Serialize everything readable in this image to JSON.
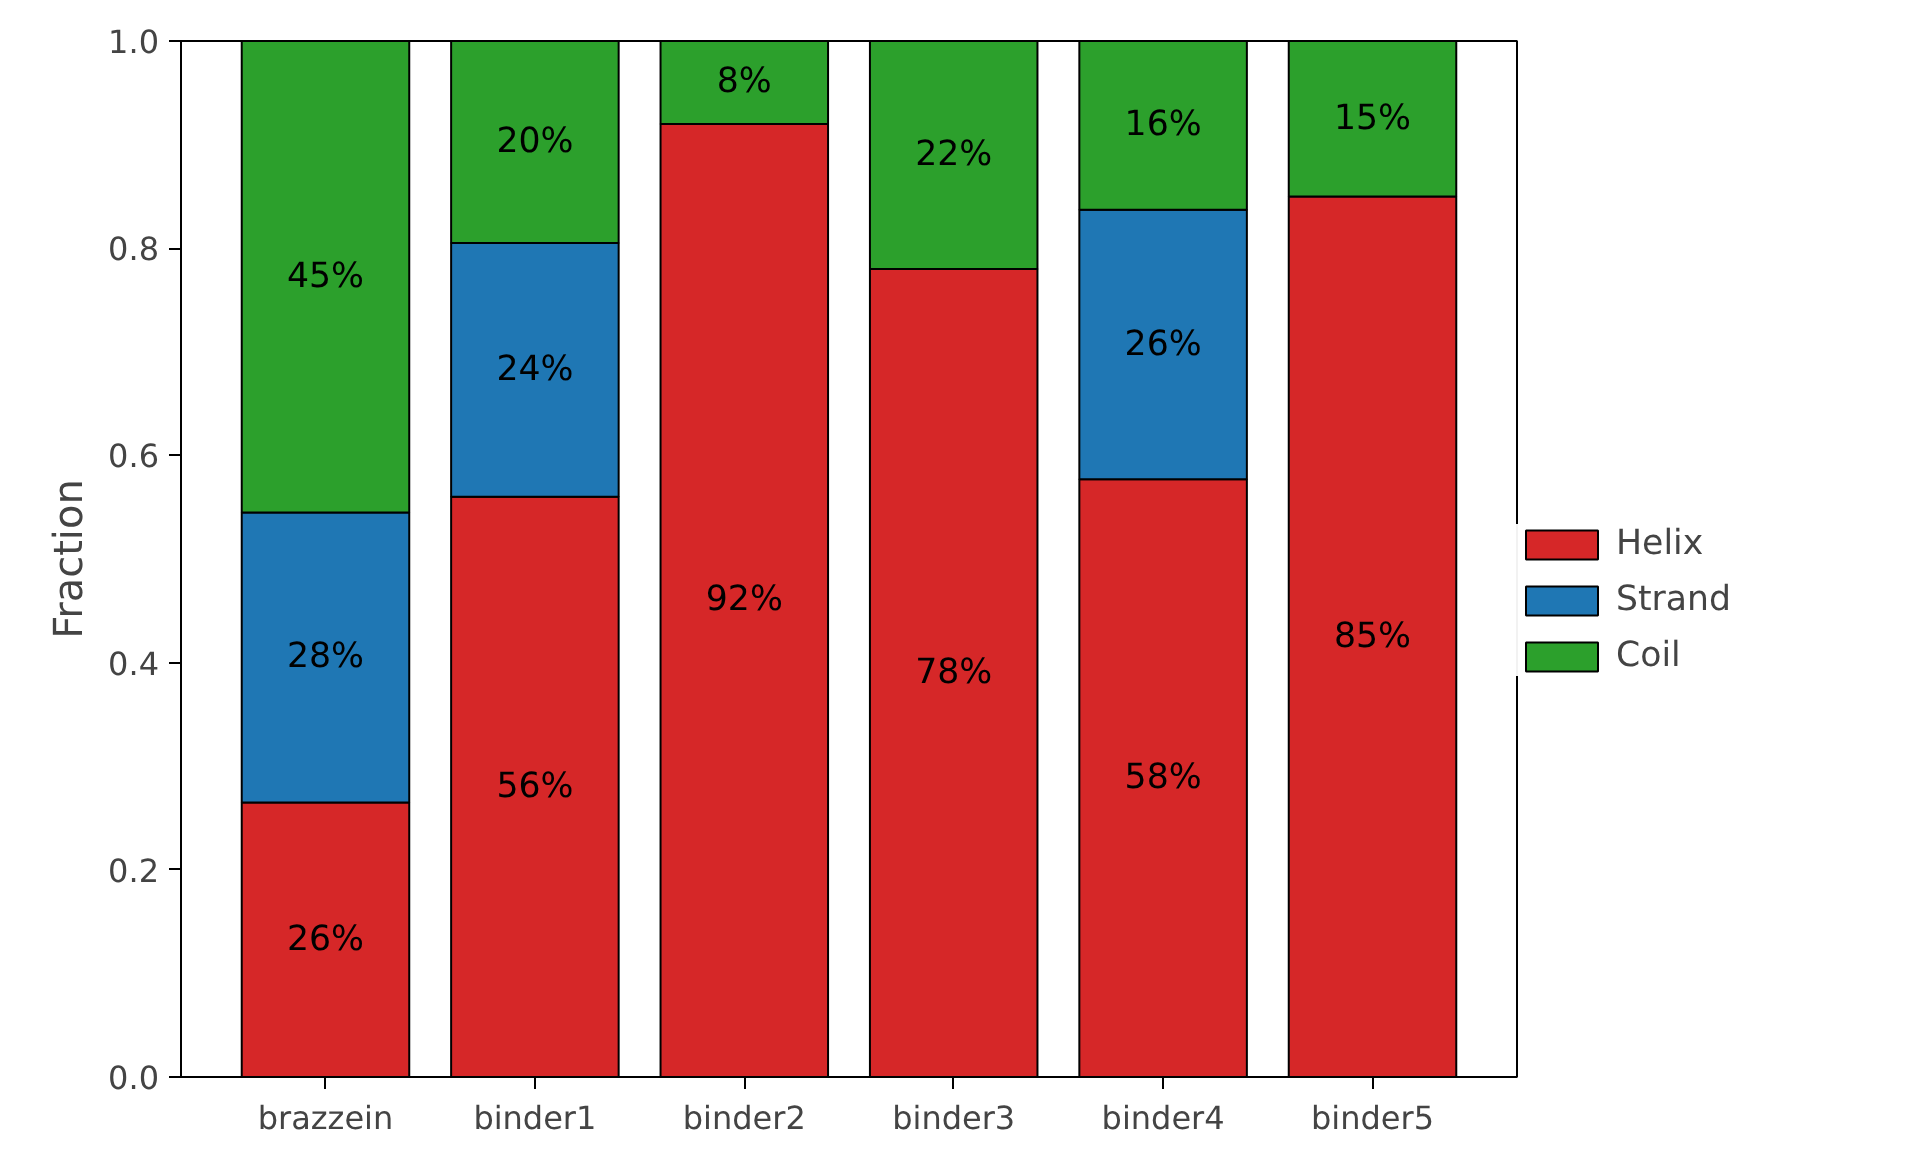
{
  "chart_data": {
    "type": "bar",
    "stacked": true,
    "ylabel": "Fraction",
    "categories": [
      "brazzein",
      "binder1",
      "binder2",
      "binder3",
      "binder4",
      "binder5"
    ],
    "series": [
      {
        "name": "Helix",
        "color": "#d62728",
        "values": [
          0.265,
          0.56,
          0.92,
          0.78,
          0.577,
          0.85
        ],
        "value_labels": [
          "26%",
          "56%",
          "92%",
          "78%",
          "58%",
          "85%"
        ]
      },
      {
        "name": "Strand",
        "color": "#1f77b4",
        "values": [
          0.28,
          0.245,
          null,
          null,
          0.26,
          null
        ],
        "value_labels": [
          "28%",
          "24%",
          null,
          null,
          "26%",
          null
        ]
      },
      {
        "name": "Coil",
        "color": "#2ca02c",
        "values": [
          0.455,
          0.195,
          0.08,
          0.22,
          0.163,
          0.15
        ],
        "value_labels": [
          "45%",
          "20%",
          "8%",
          "22%",
          "16%",
          "15%"
        ]
      }
    ],
    "ylim": [
      0,
      1
    ],
    "yticks": [
      {
        "value": 0,
        "label": "0.0"
      },
      {
        "value": 0.2,
        "label": "0.2"
      },
      {
        "value": 0.4,
        "label": "0.4"
      },
      {
        "value": 0.6,
        "label": "0.6"
      },
      {
        "value": 0.8,
        "label": "0.8"
      },
      {
        "value": 1,
        "label": "1.0"
      }
    ],
    "legend": "right",
    "grid": false
  }
}
